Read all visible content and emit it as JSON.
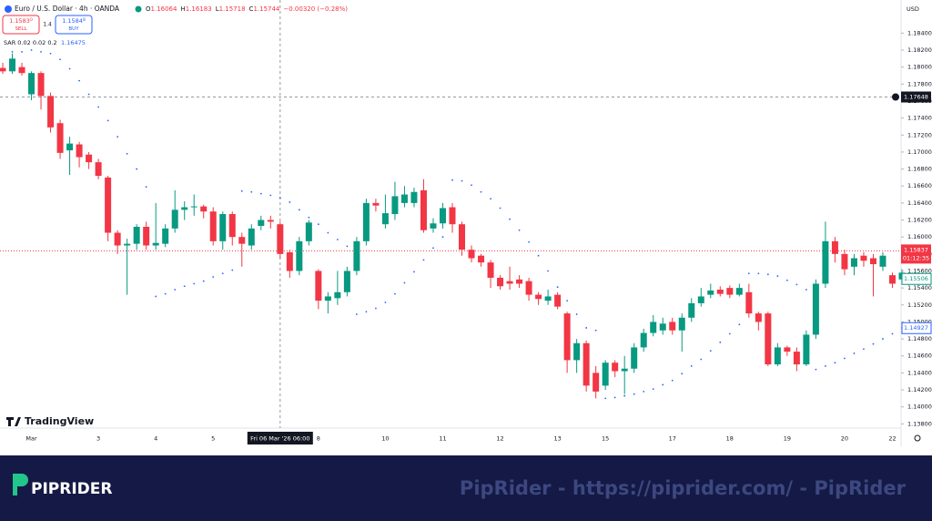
{
  "header": {
    "symbol": "Euro / U.S. Dollar · 4h · OANDA",
    "ohlc": [
      {
        "k": "O",
        "v": "1.16064"
      },
      {
        "k": "H",
        "v": "1.16183"
      },
      {
        "k": "L",
        "v": "1.15718"
      },
      {
        "k": "C",
        "v": "1.15744"
      }
    ],
    "change": "−0.00320 (−0.28%)",
    "sell_price": "1.1583",
    "sell_pip": "0",
    "sell": "SELL",
    "spread": "1.4",
    "buy_price": "1.1584",
    "buy_pip": "8",
    "buy": "BUY",
    "currency": "USD",
    "watermark": "TradingView"
  },
  "chart_data": {
    "type": "candlestick",
    "title": "Euro / U.S. Dollar · 4h · OANDA",
    "up_color": "#089981",
    "down_color": "#f23645",
    "grid": false,
    "categories": [
      null,
      null,
      null,
      "Mar",
      null,
      null,
      null,
      null,
      null,
      null,
      "3",
      null,
      null,
      null,
      null,
      null,
      "4",
      null,
      null,
      null,
      null,
      null,
      "5",
      null,
      null,
      null,
      null,
      null,
      null,
      "Fri 06 Mar '26 06:00",
      null,
      null,
      null,
      "8",
      null,
      null,
      null,
      null,
      null,
      null,
      "10",
      null,
      null,
      null,
      null,
      null,
      "11",
      null,
      null,
      null,
      null,
      null,
      "12",
      null,
      null,
      null,
      null,
      null,
      "13",
      null,
      null,
      null,
      null,
      "15",
      null,
      null,
      null,
      null,
      null,
      null,
      "17",
      null,
      null,
      null,
      null,
      null,
      "18",
      null,
      null,
      null,
      null,
      null,
      "19",
      null,
      null,
      null,
      null,
      null,
      "20",
      null,
      null,
      null,
      null,
      "22",
      null
    ],
    "open": [
      1.1799,
      1.1795,
      1.18,
      1.1768,
      1.1793,
      1.1766,
      1.1734,
      1.1702,
      1.1709,
      1.1697,
      1.1688,
      1.167,
      1.1605,
      1.159,
      1.1592,
      1.1612,
      1.159,
      1.1592,
      1.161,
      1.1632,
      1.1635,
      1.1636,
      1.163,
      1.1595,
      1.1627,
      1.16,
      1.159,
      1.1613,
      1.162,
      1.1615,
      1.1582,
      1.156,
      1.1595,
      1.156,
      1.1525,
      1.1528,
      1.1535,
      1.156,
      1.1595,
      1.164,
      1.1615,
      1.1627,
      1.164,
      1.164,
      1.1655,
      1.161,
      1.1616,
      1.1635,
      1.1615,
      1.1585,
      1.1578,
      1.157,
      1.1552,
      1.1548,
      1.155,
      1.1548,
      1.1532,
      1.1525,
      1.1532,
      1.151,
      1.1455,
      1.1475,
      1.144,
      1.1425,
      1.1452,
      1.1442,
      1.1445,
      1.147,
      1.1487,
      1.149,
      1.15,
      1.149,
      1.1505,
      1.1522,
      1.1532,
      1.1538,
      1.154,
      1.1532,
      1.1535,
      1.151,
      1.151,
      1.145,
      1.147,
      1.1465,
      1.145,
      1.1485,
      1.1545,
      1.1595,
      1.158,
      1.1565,
      1.1578,
      1.1575,
      1.1565,
      1.1555,
      1.155
    ],
    "high": [
      1.1805,
      1.1816,
      1.1805,
      1.1795,
      1.1795,
      1.177,
      1.1738,
      1.1718,
      1.1712,
      1.17,
      1.1692,
      1.1672,
      1.1608,
      1.1598,
      1.1615,
      1.1618,
      1.164,
      1.1615,
      1.1655,
      1.1642,
      1.165,
      1.1638,
      1.1635,
      1.163,
      1.163,
      1.1605,
      1.1615,
      1.1625,
      1.1625,
      1.1618,
      1.1585,
      1.16,
      1.162,
      1.1562,
      1.1535,
      1.156,
      1.1565,
      1.16,
      1.1645,
      1.1645,
      1.165,
      1.1665,
      1.166,
      1.1658,
      1.1668,
      1.1622,
      1.164,
      1.164,
      1.1618,
      1.159,
      1.158,
      1.1573,
      1.1555,
      1.1565,
      1.1555,
      1.1552,
      1.1535,
      1.1538,
      1.1535,
      1.1512,
      1.148,
      1.1478,
      1.1448,
      1.1455,
      1.1455,
      1.146,
      1.1475,
      1.1492,
      1.1508,
      1.1505,
      1.1505,
      1.151,
      1.1528,
      1.154,
      1.1545,
      1.1542,
      1.1543,
      1.1545,
      1.1545,
      1.1512,
      1.1512,
      1.1475,
      1.1472,
      1.147,
      1.149,
      1.155,
      1.1618,
      1.16,
      1.1585,
      1.158,
      1.1582,
      1.158,
      1.1582,
      1.1558,
      1.1562
    ],
    "low": [
      1.1792,
      1.1792,
      1.179,
      1.1761,
      1.175,
      1.1723,
      1.1692,
      1.1673,
      1.1682,
      1.168,
      1.1668,
      1.1595,
      1.158,
      1.1532,
      1.1585,
      1.1585,
      1.1585,
      1.1588,
      1.1605,
      1.162,
      1.1625,
      1.1622,
      1.159,
      1.1585,
      1.159,
      1.1565,
      1.1585,
      1.1608,
      1.161,
      1.1575,
      1.1552,
      1.1555,
      1.159,
      1.1515,
      1.151,
      1.152,
      1.153,
      1.1555,
      1.159,
      1.163,
      1.161,
      1.162,
      1.1635,
      1.1635,
      1.1605,
      1.1605,
      1.161,
      1.1605,
      1.1578,
      1.157,
      1.1565,
      1.154,
      1.1538,
      1.1538,
      1.154,
      1.1525,
      1.152,
      1.152,
      1.1515,
      1.144,
      1.144,
      1.1418,
      1.141,
      1.142,
      1.1435,
      1.1415,
      1.144,
      1.1465,
      1.1483,
      1.1485,
      1.1485,
      1.1465,
      1.15,
      1.1518,
      1.1528,
      1.153,
      1.1528,
      1.153,
      1.1505,
      1.149,
      1.1448,
      1.1448,
      1.146,
      1.1442,
      1.1448,
      1.148,
      1.154,
      1.157,
      1.1555,
      1.1555,
      1.1565,
      1.153,
      1.156,
      1.154,
      1.1548
    ],
    "close": [
      1.1795,
      1.181,
      1.1793,
      1.1793,
      1.1766,
      1.1729,
      1.1699,
      1.171,
      1.1694,
      1.1688,
      1.1672,
      1.1605,
      1.159,
      1.1592,
      1.1612,
      1.159,
      1.1593,
      1.161,
      1.1632,
      1.1635,
      1.1636,
      1.163,
      1.1595,
      1.1627,
      1.16,
      1.1592,
      1.161,
      1.162,
      1.1618,
      1.158,
      1.156,
      1.1595,
      1.1617,
      1.1525,
      1.153,
      1.1535,
      1.156,
      1.1595,
      1.164,
      1.1637,
      1.1628,
      1.1648,
      1.165,
      1.1653,
      1.1608,
      1.1616,
      1.1634,
      1.1615,
      1.1585,
      1.1575,
      1.157,
      1.1552,
      1.1542,
      1.1545,
      1.1545,
      1.1532,
      1.1527,
      1.153,
      1.1518,
      1.1455,
      1.1475,
      1.1425,
      1.1418,
      1.1452,
      1.1442,
      1.1445,
      1.147,
      1.1487,
      1.15,
      1.1498,
      1.149,
      1.1505,
      1.1522,
      1.153,
      1.1537,
      1.1533,
      1.1532,
      1.154,
      1.151,
      1.15,
      1.145,
      1.147,
      1.1465,
      1.145,
      1.1485,
      1.1545,
      1.1595,
      1.158,
      1.1562,
      1.1575,
      1.1572,
      1.1568,
      1.1578,
      1.1545,
      1.1558
    ],
    "indicator": {
      "name": "SAR 0.02 0.02 0.2",
      "value": 1.16475,
      "color": "#2962ff",
      "values": [
        null,
        1.1818,
        1.1818,
        1.182,
        1.1818,
        1.1816,
        1.1809,
        1.1798,
        1.1784,
        1.1768,
        1.1753,
        1.1737,
        1.1718,
        1.1698,
        1.168,
        1.1659,
        1.153,
        1.1533,
        1.1538,
        1.1542,
        1.1545,
        1.1548,
        1.1553,
        1.1557,
        1.1561,
        1.1654,
        1.1653,
        1.1651,
        1.1649,
        1.1646,
        1.1641,
        1.1632,
        1.1623,
        1.1615,
        1.1605,
        1.1597,
        1.1589,
        1.1509,
        1.1512,
        1.1516,
        1.1523,
        1.1533,
        1.1546,
        1.1559,
        1.1573,
        1.1587,
        1.16,
        1.1667,
        1.1666,
        1.1661,
        1.1653,
        1.1645,
        1.1634,
        1.1621,
        1.1608,
        1.1594,
        1.1578,
        1.156,
        1.1541,
        1.1525,
        1.1509,
        1.1493,
        1.149,
        1.141,
        1.1411,
        1.1413,
        1.1415,
        1.1418,
        1.1421,
        1.1426,
        1.1431,
        1.1439,
        1.1448,
        1.1456,
        1.1466,
        1.1476,
        1.1486,
        1.1497,
        1.1557,
        1.1557,
        1.1556,
        1.1554,
        1.1549,
        1.1544,
        1.1538,
        1.1444,
        1.1448,
        1.1452,
        1.1457,
        1.1463,
        1.1468,
        1.1474,
        1.148,
        1.1486,
        1.1493
      ]
    },
    "ylim": [
      1.1375,
      1.1879
    ],
    "yticks": [
      {
        "value": 1.138,
        "label": "1.13800"
      },
      {
        "value": 1.14,
        "label": "1.14000"
      },
      {
        "value": 1.142,
        "label": "1.14200"
      },
      {
        "value": 1.144,
        "label": "1.14400"
      },
      {
        "value": 1.146,
        "label": "1.14600"
      },
      {
        "value": 1.148,
        "label": "1.14800"
      },
      {
        "value": 1.15,
        "label": "1.15000"
      },
      {
        "value": 1.152,
        "label": "1.15200"
      },
      {
        "value": 1.154,
        "label": "1.15400"
      },
      {
        "value": 1.156,
        "label": "1.15600"
      },
      {
        "value": 1.158,
        "label": "1.15800"
      },
      {
        "value": 1.16,
        "label": "1.16000"
      },
      {
        "value": 1.162,
        "label": "1.16200"
      },
      {
        "value": 1.164,
        "label": "1.16400"
      },
      {
        "value": 1.166,
        "label": "1.16600"
      },
      {
        "value": 1.168,
        "label": "1.16800"
      },
      {
        "value": 1.17,
        "label": "1.17000"
      },
      {
        "value": 1.172,
        "label": "1.17200"
      },
      {
        "value": 1.174,
        "label": "1.17400"
      },
      {
        "value": 1.176,
        "label": "1.17600"
      },
      {
        "value": 1.178,
        "label": "1.17800"
      },
      {
        "value": 1.18,
        "label": "1.18000"
      },
      {
        "value": 1.182,
        "label": "1.18200"
      },
      {
        "value": 1.184,
        "label": "1.18400"
      }
    ],
    "price_line": {
      "value": 1.15837,
      "countdown": "01:12:35",
      "color": "#f23645"
    },
    "crosshair": {
      "x": "Fri 06 Mar '26 06:00",
      "y": 1.17648
    },
    "axis_labels": [
      {
        "value": 1.15506,
        "color": "#089981"
      },
      {
        "value": 1.14927,
        "color": "#2962ff"
      }
    ]
  },
  "footer": {
    "brand": "PIPRIDER",
    "caption": "PipRider - https://piprider.com/ - PipRider"
  }
}
